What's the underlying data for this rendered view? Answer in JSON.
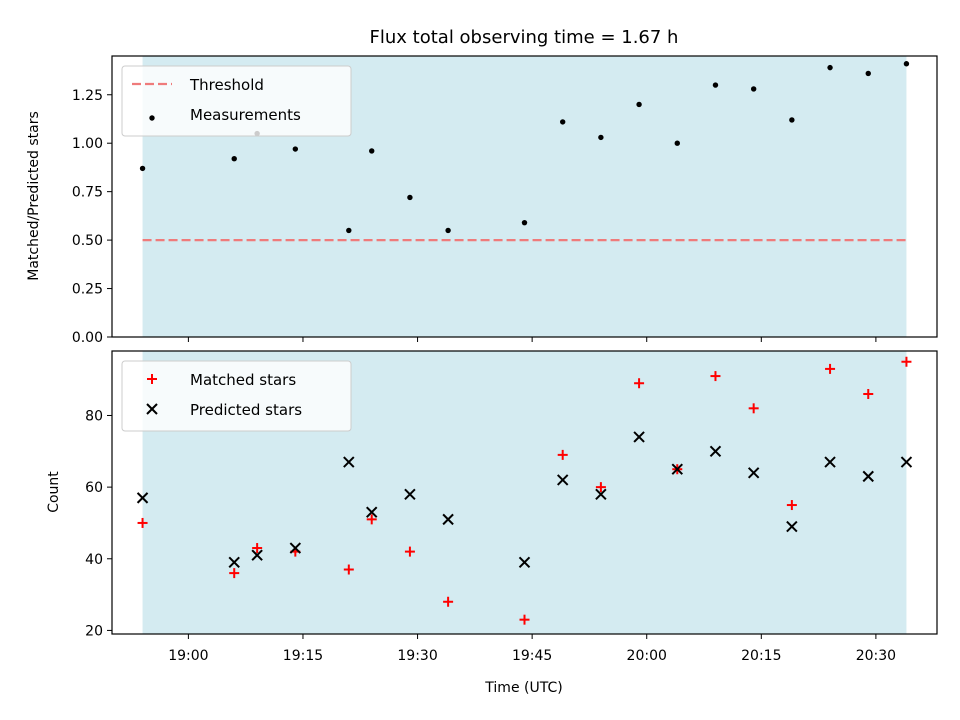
{
  "colors": {
    "band": "#d4ebf1",
    "threshold": "#ef7b7b",
    "matched": "#ff0000",
    "predicted": "#000000",
    "measurements": "#000000"
  },
  "chart_data": [
    {
      "type": "scatter",
      "title": "Flux total observing time = 1.67 h",
      "ylabel": "Matched/Predicted stars",
      "xlabel": "",
      "xlim": [
        "18:50",
        "20:38"
      ],
      "ylim": [
        0,
        1.45
      ],
      "yticks": [
        0,
        0.25,
        0.5,
        0.75,
        1.0,
        1.25
      ],
      "ytick_labels": [
        "0.00",
        "0.25",
        "0.50",
        "0.75",
        "1.00",
        "1.25"
      ],
      "observing_band": [
        "18:54",
        "20:34"
      ],
      "legend_position": "top-left",
      "threshold": {
        "name": "Threshold",
        "value": 0.5
      },
      "series": [
        {
          "name": "Measurements",
          "x": [
            "18:54",
            "19:06",
            "19:09",
            "19:14",
            "19:21",
            "19:24",
            "19:29",
            "19:34",
            "19:44",
            "19:49",
            "19:54",
            "19:59",
            "20:04",
            "20:09",
            "20:14",
            "20:19",
            "20:24",
            "20:29",
            "20:34"
          ],
          "y": [
            0.87,
            0.92,
            1.05,
            0.97,
            0.55,
            0.96,
            0.72,
            0.55,
            0.59,
            1.11,
            1.03,
            1.2,
            1.0,
            1.3,
            1.28,
            1.12,
            1.39,
            1.36,
            1.41
          ]
        }
      ]
    },
    {
      "type": "scatter",
      "title": "",
      "ylabel": "Count",
      "xlabel": "Time (UTC)",
      "xlim": [
        "18:50",
        "20:38"
      ],
      "ylim": [
        19,
        98
      ],
      "yticks": [
        20,
        40,
        60,
        80
      ],
      "ytick_labels": [
        "20",
        "40",
        "60",
        "80"
      ],
      "xticks": [
        "19:00",
        "19:15",
        "19:30",
        "19:45",
        "20:00",
        "20:15",
        "20:30"
      ],
      "observing_band": [
        "18:54",
        "20:34"
      ],
      "legend_position": "top-left",
      "series": [
        {
          "name": "Matched stars",
          "marker": "plus",
          "x": [
            "18:54",
            "19:06",
            "19:09",
            "19:14",
            "19:21",
            "19:24",
            "19:29",
            "19:34",
            "19:44",
            "19:49",
            "19:54",
            "19:59",
            "20:04",
            "20:09",
            "20:14",
            "20:19",
            "20:24",
            "20:29",
            "20:34"
          ],
          "y": [
            50,
            36,
            43,
            42,
            37,
            51,
            42,
            28,
            23,
            69,
            60,
            89,
            65,
            91,
            82,
            55,
            93,
            86,
            95
          ]
        },
        {
          "name": "Predicted stars",
          "marker": "x",
          "x": [
            "18:54",
            "19:06",
            "19:09",
            "19:14",
            "19:21",
            "19:24",
            "19:29",
            "19:34",
            "19:44",
            "19:49",
            "19:54",
            "19:59",
            "20:04",
            "20:09",
            "20:14",
            "20:19",
            "20:24",
            "20:29",
            "20:34"
          ],
          "y": [
            57,
            39,
            41,
            43,
            67,
            53,
            58,
            51,
            39,
            62,
            58,
            74,
            65,
            70,
            64,
            49,
            67,
            63,
            67
          ]
        }
      ]
    }
  ]
}
